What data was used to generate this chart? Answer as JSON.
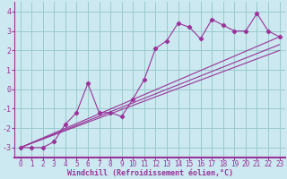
{
  "xlabel": "Windchill (Refroidissement éolien,°C)",
  "background_color": "#cce8f0",
  "grid_color": "#99cccc",
  "line_color": "#993399",
  "spine_color": "#993399",
  "xlim": [
    -0.5,
    23.5
  ],
  "ylim": [
    -3.5,
    4.5
  ],
  "xticks": [
    0,
    1,
    2,
    3,
    4,
    5,
    6,
    7,
    8,
    9,
    10,
    11,
    12,
    13,
    14,
    15,
    16,
    17,
    18,
    19,
    20,
    21,
    22,
    23
  ],
  "yticks": [
    -3,
    -2,
    -1,
    0,
    1,
    2,
    3,
    4
  ],
  "data_x": [
    0,
    1,
    2,
    3,
    4,
    5,
    6,
    7,
    8,
    9,
    10,
    11,
    12,
    13,
    14,
    15,
    16,
    17,
    18,
    19,
    20,
    21,
    22,
    23
  ],
  "data_y": [
    -3,
    -3,
    -3,
    -2.7,
    -1.8,
    -1.2,
    0.3,
    -1.2,
    -1.2,
    -1.4,
    -0.5,
    0.5,
    2.1,
    2.5,
    3.4,
    3.2,
    2.6,
    3.6,
    3.3,
    3.0,
    3.0,
    3.9,
    3.0,
    2.7
  ],
  "line1_x": [
    0,
    23
  ],
  "line1_y": [
    -3,
    2.7
  ],
  "line2_x": [
    0,
    23
  ],
  "line2_y": [
    -3,
    2.3
  ],
  "line3_x": [
    0,
    23
  ],
  "line3_y": [
    -3,
    2.0
  ],
  "xlabel_fontsize": 6,
  "tick_fontsize": 5.5,
  "ytick_fontsize": 6
}
